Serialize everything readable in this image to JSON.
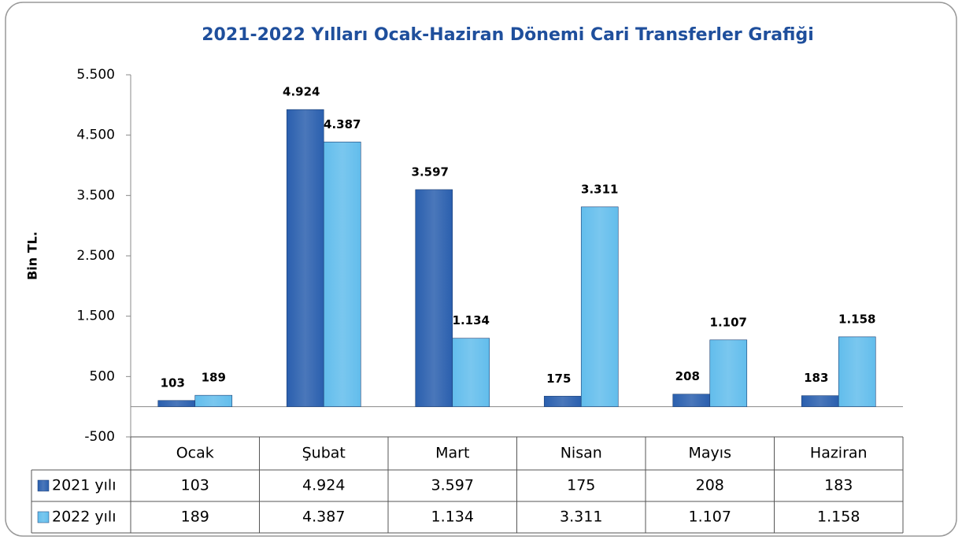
{
  "chart_data": {
    "type": "bar",
    "title": "2021-2022 Yılları Ocak-Haziran Dönemi Cari Transferler Grafiği",
    "y_label": "Bin TL.",
    "categories": [
      "Ocak",
      "Şubat",
      "Mart",
      "Nisan",
      "Mayıs",
      "Haziran"
    ],
    "series": [
      {
        "name": "2021 yılı",
        "color": "#2a5fae",
        "values": [
          103,
          4924,
          3597,
          175,
          208,
          183
        ],
        "value_labels": [
          "103",
          "4.924",
          "3.597",
          "175",
          "208",
          "183"
        ]
      },
      {
        "name": "2022 yılı",
        "color": "#62bdec",
        "values": [
          189,
          4387,
          1134,
          3311,
          1107,
          1158
        ],
        "value_labels": [
          "189",
          "4.387",
          "1.134",
          "3.311",
          "1.107",
          "1.158"
        ]
      }
    ],
    "ylim": [
      -500,
      5500
    ],
    "yticks": [
      -500,
      500,
      {
        "value": 1500,
        "label": "1.500"
      },
      {
        "value": 2500,
        "label": "2.500"
      },
      {
        "value": 3500,
        "label": "3.500"
      },
      {
        "value": 4500,
        "label": "4.500"
      },
      {
        "value": 5500,
        "label": "5.500"
      }
    ]
  }
}
